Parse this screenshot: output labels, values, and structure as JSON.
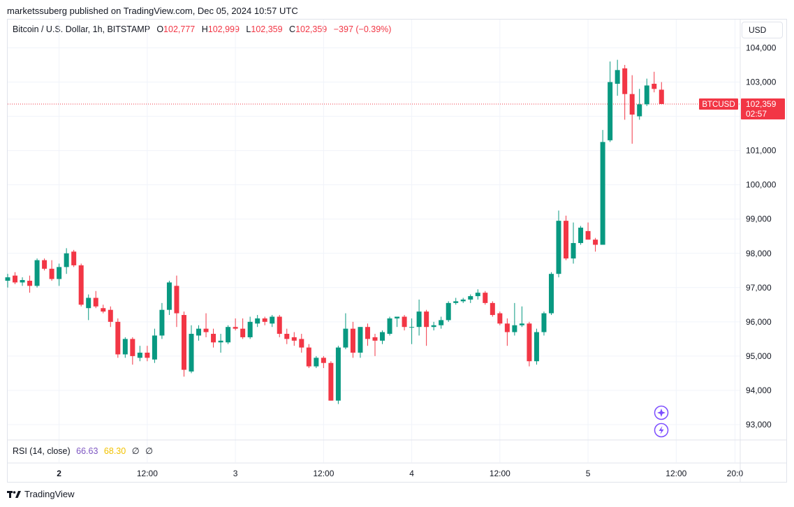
{
  "header": {
    "publisher": "marketssuberg published on TradingView.com, Dec 05, 2024 10:57 UTC"
  },
  "legend": {
    "symbol": "Bitcoin / U.S. Dollar, 1h, BITSTAMP",
    "o_label": "O",
    "o_value": "102,777",
    "h_label": "H",
    "h_value": "102,999",
    "l_label": "L",
    "l_value": "102,359",
    "c_label": "C",
    "c_value": "102,359",
    "change": "−397 (−0.39%)"
  },
  "currency": "USD",
  "rsi": {
    "label": "RSI (14, close)",
    "value1": "66.63",
    "value2": "68.30",
    "sym1": "∅",
    "sym2": "∅"
  },
  "price_tag": {
    "symbol": "BTCUSD",
    "price": "102,359",
    "countdown": "02:57"
  },
  "footer": {
    "brand": "TradingView"
  },
  "colors": {
    "up": "#089981",
    "down": "#f23645",
    "grid": "#f0f3fa",
    "rsi1": "#7e57c2",
    "rsi2": "#f2c200",
    "badge": "#7c4dff"
  },
  "chart_data": {
    "type": "candlestick",
    "series": "BTCUSD 1h",
    "y_ticks": [
      93000,
      94000,
      95000,
      96000,
      97000,
      98000,
      99000,
      100000,
      101000,
      102000,
      103000,
      104000
    ],
    "y_tick_labels": [
      "93,000",
      "94,000",
      "95,000",
      "96,000",
      "97,000",
      "98,000",
      "99,000",
      "100,000",
      "101,000",
      "102,000",
      "103,000",
      "104,000"
    ],
    "ylim": [
      92500,
      104600
    ],
    "x_ticks": [
      {
        "label": "2",
        "bold": true,
        "index": 7
      },
      {
        "label": "12:00",
        "bold": false,
        "index": 19
      },
      {
        "label": "3",
        "bold": false,
        "index": 31
      },
      {
        "label": "12:00",
        "bold": false,
        "index": 43
      },
      {
        "label": "4",
        "bold": false,
        "index": 55
      },
      {
        "label": "12:00",
        "bold": false,
        "index": 67
      },
      {
        "label": "5",
        "bold": false,
        "index": 79
      },
      {
        "label": "12:00",
        "bold": false,
        "index": 91
      },
      {
        "label": "20:0",
        "bold": false,
        "index": 99
      }
    ],
    "last_price": 102359,
    "candles": [
      {
        "o": 97200,
        "h": 97400,
        "l": 97000,
        "c": 97300
      },
      {
        "o": 97350,
        "h": 97450,
        "l": 97100,
        "c": 97150
      },
      {
        "o": 97150,
        "h": 97300,
        "l": 97050,
        "c": 97220
      },
      {
        "o": 97200,
        "h": 97350,
        "l": 96850,
        "c": 97050
      },
      {
        "o": 97050,
        "h": 97850,
        "l": 97000,
        "c": 97800
      },
      {
        "o": 97800,
        "h": 97850,
        "l": 97500,
        "c": 97550
      },
      {
        "o": 97550,
        "h": 97800,
        "l": 97200,
        "c": 97250
      },
      {
        "o": 97250,
        "h": 97700,
        "l": 97050,
        "c": 97600
      },
      {
        "o": 97600,
        "h": 98150,
        "l": 97400,
        "c": 98000
      },
      {
        "o": 98050,
        "h": 98100,
        "l": 97600,
        "c": 97650
      },
      {
        "o": 97650,
        "h": 97700,
        "l": 96450,
        "c": 96500
      },
      {
        "o": 96400,
        "h": 96800,
        "l": 96050,
        "c": 96700
      },
      {
        "o": 96700,
        "h": 96900,
        "l": 96400,
        "c": 96450
      },
      {
        "o": 96400,
        "h": 96500,
        "l": 96250,
        "c": 96300
      },
      {
        "o": 96350,
        "h": 96450,
        "l": 95850,
        "c": 96000
      },
      {
        "o": 96000,
        "h": 96100,
        "l": 94950,
        "c": 95050
      },
      {
        "o": 95050,
        "h": 95550,
        "l": 94950,
        "c": 95500
      },
      {
        "o": 95500,
        "h": 95550,
        "l": 94750,
        "c": 95000
      },
      {
        "o": 94950,
        "h": 95300,
        "l": 94850,
        "c": 95100
      },
      {
        "o": 95100,
        "h": 95300,
        "l": 94850,
        "c": 94950
      },
      {
        "o": 94900,
        "h": 95800,
        "l": 94800,
        "c": 95600
      },
      {
        "o": 95600,
        "h": 96550,
        "l": 95500,
        "c": 96350
      },
      {
        "o": 96350,
        "h": 97200,
        "l": 96200,
        "c": 97150
      },
      {
        "o": 97050,
        "h": 97350,
        "l": 95850,
        "c": 96250
      },
      {
        "o": 96200,
        "h": 96300,
        "l": 94400,
        "c": 94600
      },
      {
        "o": 94550,
        "h": 95900,
        "l": 94500,
        "c": 95650
      },
      {
        "o": 95600,
        "h": 95900,
        "l": 95450,
        "c": 95800
      },
      {
        "o": 95800,
        "h": 96250,
        "l": 95550,
        "c": 95700
      },
      {
        "o": 95650,
        "h": 95800,
        "l": 95250,
        "c": 95400
      },
      {
        "o": 95400,
        "h": 95650,
        "l": 95100,
        "c": 95450
      },
      {
        "o": 95400,
        "h": 95900,
        "l": 95350,
        "c": 95850
      },
      {
        "o": 95850,
        "h": 96100,
        "l": 95750,
        "c": 95800
      },
      {
        "o": 95800,
        "h": 96100,
        "l": 95500,
        "c": 95550
      },
      {
        "o": 95550,
        "h": 96150,
        "l": 95500,
        "c": 96000
      },
      {
        "o": 95950,
        "h": 96200,
        "l": 95850,
        "c": 96100
      },
      {
        "o": 96100,
        "h": 96150,
        "l": 95900,
        "c": 96000
      },
      {
        "o": 95950,
        "h": 96200,
        "l": 95850,
        "c": 96150
      },
      {
        "o": 96150,
        "h": 96200,
        "l": 95550,
        "c": 95650
      },
      {
        "o": 95650,
        "h": 95800,
        "l": 95350,
        "c": 95500
      },
      {
        "o": 95550,
        "h": 95700,
        "l": 95300,
        "c": 95450
      },
      {
        "o": 95500,
        "h": 95650,
        "l": 95100,
        "c": 95250
      },
      {
        "o": 95250,
        "h": 95350,
        "l": 94650,
        "c": 94700
      },
      {
        "o": 94700,
        "h": 95000,
        "l": 94650,
        "c": 94950
      },
      {
        "o": 94950,
        "h": 95000,
        "l": 94650,
        "c": 94800
      },
      {
        "o": 94800,
        "h": 94850,
        "l": 93700,
        "c": 93700
      },
      {
        "o": 93700,
        "h": 95300,
        "l": 93600,
        "c": 95250
      },
      {
        "o": 95250,
        "h": 96250,
        "l": 95200,
        "c": 95800
      },
      {
        "o": 95800,
        "h": 96000,
        "l": 94950,
        "c": 95100
      },
      {
        "o": 95100,
        "h": 95850,
        "l": 94950,
        "c": 95850
      },
      {
        "o": 95850,
        "h": 95950,
        "l": 95300,
        "c": 95500
      },
      {
        "o": 95550,
        "h": 95650,
        "l": 95000,
        "c": 95450
      },
      {
        "o": 95450,
        "h": 95750,
        "l": 95350,
        "c": 95700
      },
      {
        "o": 95650,
        "h": 96150,
        "l": 95600,
        "c": 96100
      },
      {
        "o": 96100,
        "h": 96150,
        "l": 95850,
        "c": 96150
      },
      {
        "o": 96150,
        "h": 96200,
        "l": 95750,
        "c": 95850
      },
      {
        "o": 95850,
        "h": 96100,
        "l": 95350,
        "c": 95850
      },
      {
        "o": 95850,
        "h": 96650,
        "l": 95600,
        "c": 96300
      },
      {
        "o": 96300,
        "h": 96350,
        "l": 95300,
        "c": 95850
      },
      {
        "o": 95850,
        "h": 96000,
        "l": 95750,
        "c": 95900
      },
      {
        "o": 95900,
        "h": 96150,
        "l": 95800,
        "c": 96050
      },
      {
        "o": 96050,
        "h": 96600,
        "l": 96000,
        "c": 96550
      },
      {
        "o": 96550,
        "h": 96700,
        "l": 96500,
        "c": 96600
      },
      {
        "o": 96600,
        "h": 96700,
        "l": 96550,
        "c": 96650
      },
      {
        "o": 96650,
        "h": 96800,
        "l": 96550,
        "c": 96750
      },
      {
        "o": 96750,
        "h": 96950,
        "l": 96650,
        "c": 96850
      },
      {
        "o": 96850,
        "h": 96900,
        "l": 96500,
        "c": 96550
      },
      {
        "o": 96550,
        "h": 96600,
        "l": 96150,
        "c": 96200
      },
      {
        "o": 96250,
        "h": 96300,
        "l": 95900,
        "c": 95950
      },
      {
        "o": 95950,
        "h": 96100,
        "l": 95300,
        "c": 95700
      },
      {
        "o": 95700,
        "h": 96550,
        "l": 95600,
        "c": 95900
      },
      {
        "o": 95900,
        "h": 96450,
        "l": 95850,
        "c": 95950
      },
      {
        "o": 95950,
        "h": 96000,
        "l": 94700,
        "c": 94850
      },
      {
        "o": 94850,
        "h": 95800,
        "l": 94750,
        "c": 95700
      },
      {
        "o": 95700,
        "h": 96300,
        "l": 95600,
        "c": 96250
      },
      {
        "o": 96250,
        "h": 97450,
        "l": 96200,
        "c": 97400
      },
      {
        "o": 97400,
        "h": 99250,
        "l": 97300,
        "c": 98950
      },
      {
        "o": 98950,
        "h": 99100,
        "l": 97800,
        "c": 97850
      },
      {
        "o": 97850,
        "h": 98900,
        "l": 97700,
        "c": 98300
      },
      {
        "o": 98300,
        "h": 98800,
        "l": 98250,
        "c": 98750
      },
      {
        "o": 98650,
        "h": 98900,
        "l": 98400,
        "c": 98400
      },
      {
        "o": 98400,
        "h": 98450,
        "l": 98050,
        "c": 98250
      },
      {
        "o": 98250,
        "h": 101600,
        "l": 98250,
        "c": 101250
      },
      {
        "o": 101300,
        "h": 103600,
        "l": 101250,
        "c": 103000
      },
      {
        "o": 102950,
        "h": 103650,
        "l": 102600,
        "c": 103350
      },
      {
        "o": 103400,
        "h": 103500,
        "l": 101900,
        "c": 102650
      },
      {
        "o": 102650,
        "h": 103200,
        "l": 101200,
        "c": 102050
      },
      {
        "o": 102000,
        "h": 102800,
        "l": 101900,
        "c": 102350
      },
      {
        "o": 102350,
        "h": 103100,
        "l": 102300,
        "c": 102900
      },
      {
        "o": 102950,
        "h": 103300,
        "l": 102700,
        "c": 102800
      },
      {
        "o": 102777,
        "h": 102999,
        "l": 102359,
        "c": 102359
      }
    ]
  }
}
